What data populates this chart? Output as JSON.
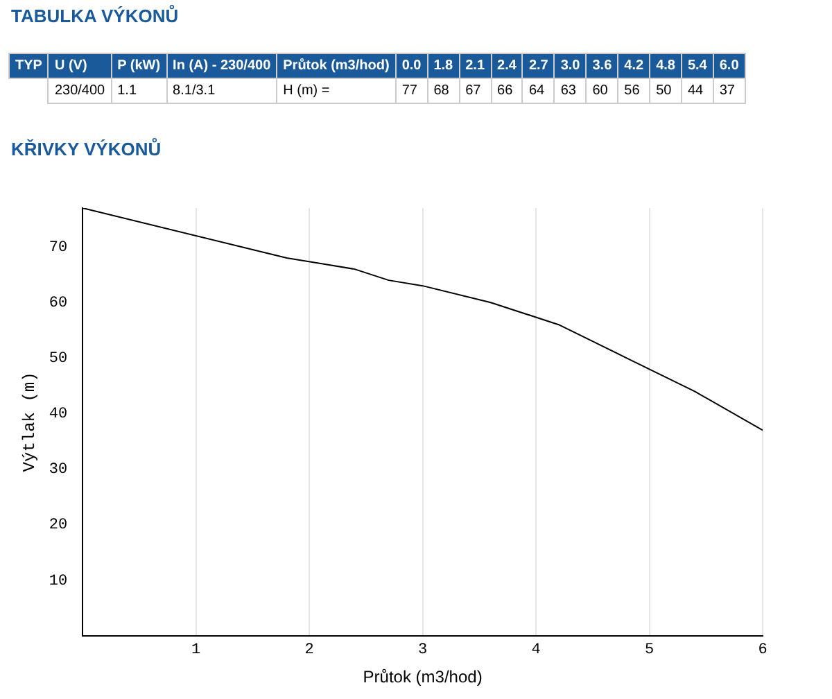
{
  "chart_data": {
    "type": "line",
    "title": "TABULKA VÝKONŮ",
    "subtitle": "KŘIVKY VÝKONŮ",
    "xlabel": "Průtok (m3/hod)",
    "ylabel": "Výtlak (m)",
    "annotations": [
      "TYP",
      "U (V)",
      "P (kW)",
      "In (A) - 230/400",
      "Průtok (m3/hod)",
      "0.0",
      "1.8",
      "2.1",
      "2.4",
      "2.7",
      "3.0",
      "3.6",
      "4.2",
      "4.8",
      "5.4",
      "6.0",
      "230/400",
      "1.1",
      "8.1/3.1",
      "H (m) =",
      "77",
      "68",
      "67",
      "66",
      "64",
      "63",
      "60",
      "56",
      "50",
      "44",
      "37"
    ],
    "x": [
      0,
      1.8,
      2.1,
      2.4,
      2.7,
      3.0,
      3.6,
      4.2,
      4.8,
      5.4,
      6.0
    ],
    "series": [
      {
        "color": "#000000",
        "values": [
          77,
          68,
          67,
          66,
          64,
          63,
          60,
          56,
          50,
          44,
          37
        ]
      }
    ],
    "xlim": [
      0,
      6
    ],
    "xticks": [
      1,
      2,
      3,
      4,
      5,
      6
    ],
    "ylim": [
      0,
      77
    ],
    "yticks": [
      10,
      20,
      30,
      40,
      50,
      60,
      70
    ],
    "grid": "x",
    "legend": false,
    "marker": "none",
    "line_style": "solid"
  }
}
